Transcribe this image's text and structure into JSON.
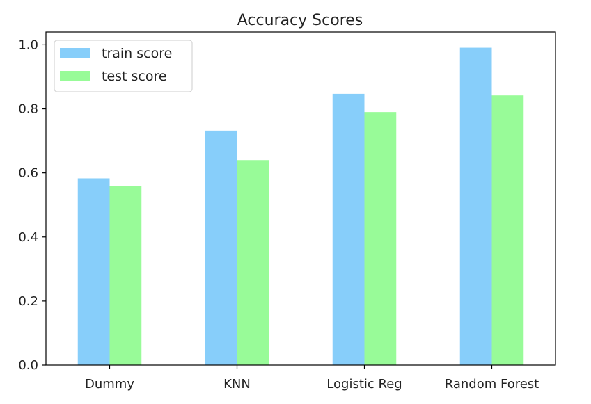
{
  "chart_data": {
    "type": "bar",
    "title": "Accuracy Scores",
    "xlabel": "",
    "ylabel": "",
    "categories": [
      "Dummy",
      "KNN",
      "Logistic Reg",
      "Random Forest"
    ],
    "series": [
      {
        "name": "train score",
        "values": [
          0.583,
          0.732,
          0.847,
          0.991
        ],
        "color": "#87CEFA"
      },
      {
        "name": "test score",
        "values": [
          0.56,
          0.64,
          0.79,
          0.842
        ],
        "color": "#98FB98"
      }
    ],
    "ylim": [
      0,
      1.04
    ],
    "yticks": [
      "0.0",
      "0.2",
      "0.4",
      "0.6",
      "0.8",
      "1.0"
    ],
    "grid": false,
    "legend_position": "upper-left"
  }
}
